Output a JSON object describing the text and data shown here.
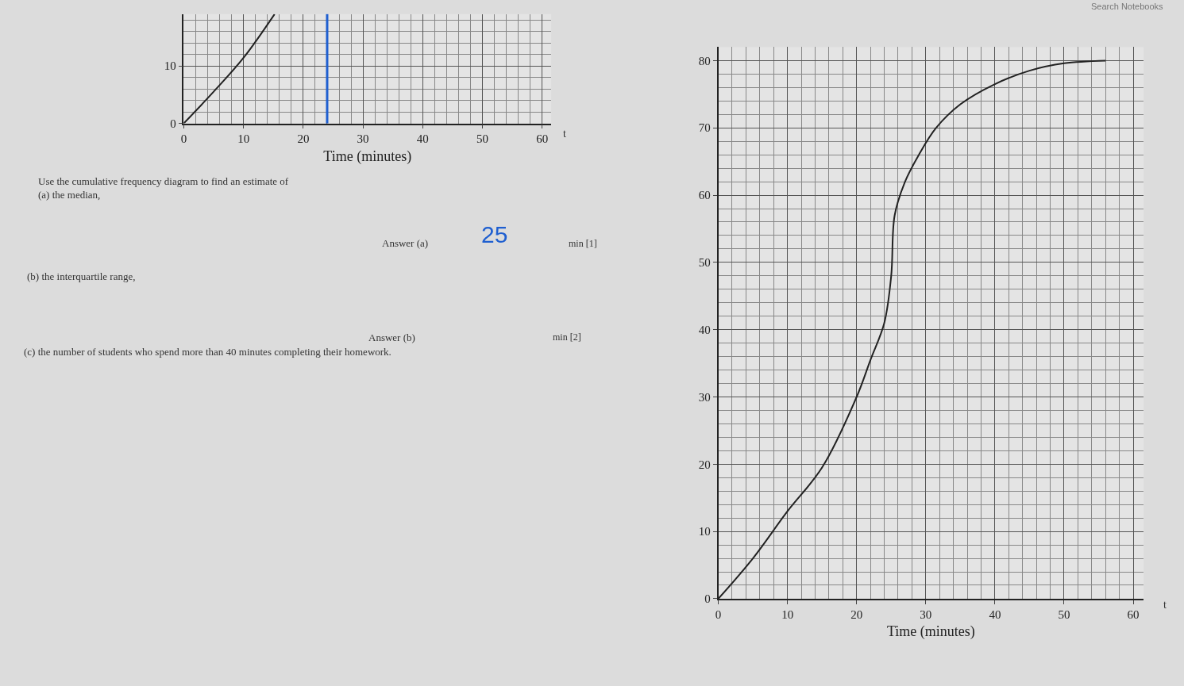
{
  "chart_data": [
    {
      "type": "line",
      "xlabel": "Time (minutes)",
      "x": [
        0,
        5,
        10,
        15.2
      ],
      "values": [
        0,
        5.5,
        11.4,
        19
      ],
      "color": "#222222",
      "xlim": [
        0,
        61.5
      ],
      "ylim": [
        0,
        19
      ],
      "xticks": [
        0,
        10,
        20,
        30,
        40,
        50,
        60
      ],
      "yticks": [
        0,
        10
      ],
      "grid": true,
      "marker": "none",
      "line_style": "solid",
      "ref_lines": [
        {
          "axis": "x",
          "value": 24,
          "color": "#1f5fd0"
        }
      ],
      "annotations": [
        "t",
        "Use the cumulative frequency diagram to find an estimate of",
        "(a) the median,",
        "Answer (a)",
        "25",
        "min [1]",
        "(b) the interquartile range,",
        "Answer (b)",
        "min [2]",
        "(c) the number of students who spend more than 40 minutes completing their homework."
      ]
    },
    {
      "type": "line",
      "xlabel": "Time (minutes)",
      "x": [
        0,
        5,
        10,
        15,
        20,
        22,
        24,
        25,
        25.5,
        27,
        29,
        31.5,
        35,
        40,
        45,
        50,
        56
      ],
      "values": [
        0,
        6,
        13,
        19.5,
        30,
        35.5,
        41,
        48,
        57,
        62,
        66,
        70,
        73.5,
        76.5,
        78.5,
        79.6,
        80
      ],
      "color": "#222222",
      "xlim": [
        0,
        61.5
      ],
      "ylim": [
        0,
        82
      ],
      "xticks": [
        0,
        10,
        20,
        30,
        40,
        50,
        60
      ],
      "yticks": [
        0,
        10,
        20,
        30,
        40,
        50,
        60,
        70,
        80
      ],
      "grid": true,
      "marker": "none",
      "line_style": "solid",
      "annotations": [
        "t",
        "Search Notebooks"
      ]
    }
  ]
}
